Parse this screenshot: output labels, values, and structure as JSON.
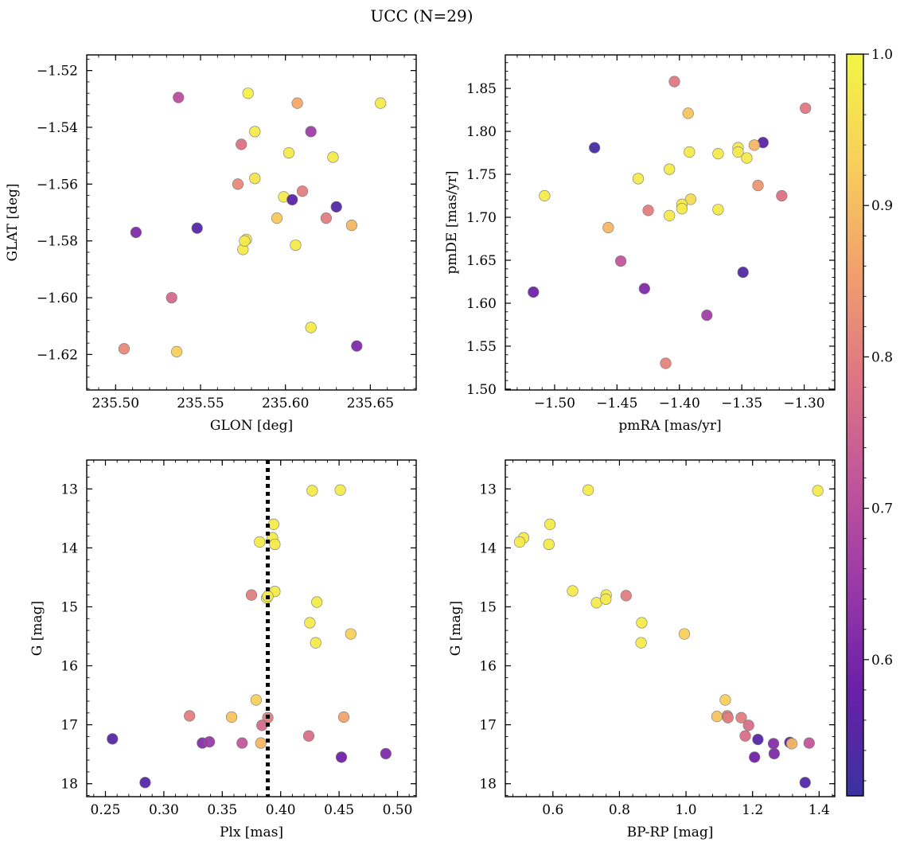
{
  "figure": {
    "title": "UCC (N=29)"
  },
  "colormap": {
    "name": "plasma",
    "range": [
      0.51,
      1.0
    ],
    "ticks": [
      0.6,
      0.7,
      0.8,
      0.9,
      1.0
    ],
    "tick_labels": [
      "0.6",
      "0.7",
      "0.8",
      "0.9",
      "1.0"
    ],
    "stops": [
      "#3a32a0",
      "#6a1fa8",
      "#9a3aa8",
      "#c2569a",
      "#df7782",
      "#f2a26c",
      "#f8d05a",
      "#f2f545"
    ]
  },
  "chart_data": [
    {
      "type": "scatter",
      "id": "glon-glat",
      "xlabel": "GLON [deg]",
      "ylabel": "GLAT [deg]",
      "xlim": [
        235.483,
        235.677
      ],
      "ylim": [
        -1.6325,
        -1.5145
      ],
      "xticks": [
        235.5,
        235.55,
        235.6,
        235.65
      ],
      "xtick_labels": [
        "235.50",
        "235.55",
        "235.60",
        "235.65"
      ],
      "yticks": [
        -1.62,
        -1.6,
        -1.58,
        -1.56,
        -1.54,
        -1.52
      ],
      "ytick_labels": [
        "−1.62",
        "−1.60",
        "−1.58",
        "−1.56",
        "−1.54",
        "−1.52"
      ],
      "points": [
        [
          235.537,
          -1.5295,
          0.7
        ],
        [
          235.578,
          -1.528,
          0.99
        ],
        [
          235.607,
          -1.5315,
          0.87
        ],
        [
          235.656,
          -1.5315,
          0.98
        ],
        [
          235.582,
          -1.5415,
          0.98
        ],
        [
          235.615,
          -1.5415,
          0.66
        ],
        [
          235.574,
          -1.546,
          0.78
        ],
        [
          235.602,
          -1.549,
          0.98
        ],
        [
          235.628,
          -1.5505,
          0.98
        ],
        [
          235.582,
          -1.558,
          0.97
        ],
        [
          235.572,
          -1.56,
          0.82
        ],
        [
          235.61,
          -1.5625,
          0.8
        ],
        [
          235.599,
          -1.5645,
          0.98
        ],
        [
          235.604,
          -1.5655,
          0.56
        ],
        [
          235.63,
          -1.568,
          0.55
        ],
        [
          235.595,
          -1.572,
          0.92
        ],
        [
          235.624,
          -1.572,
          0.8
        ],
        [
          235.639,
          -1.5745,
          0.89
        ],
        [
          235.512,
          -1.577,
          0.61
        ],
        [
          235.548,
          -1.5755,
          0.55
        ],
        [
          235.577,
          -1.5795,
          0.98
        ],
        [
          235.575,
          -1.583,
          0.98
        ],
        [
          235.606,
          -1.5815,
          0.98
        ],
        [
          235.533,
          -1.6,
          0.76
        ],
        [
          235.615,
          -1.6105,
          0.98
        ],
        [
          235.505,
          -1.618,
          0.82
        ],
        [
          235.536,
          -1.619,
          0.93
        ],
        [
          235.642,
          -1.617,
          0.61
        ],
        [
          235.576,
          -1.58,
          0.98
        ]
      ]
    },
    {
      "type": "scatter",
      "id": "pmra-pmde",
      "xlabel": "pmRA [mas/yr]",
      "ylabel": "pmDE [mas/yr]",
      "xlim": [
        -1.5395,
        -1.2755
      ],
      "ylim": [
        1.499,
        1.889
      ],
      "xticks": [
        -1.5,
        -1.45,
        -1.4,
        -1.35,
        -1.3
      ],
      "xtick_labels": [
        "−1.50",
        "−1.45",
        "−1.40",
        "−1.35",
        "−1.30"
      ],
      "yticks": [
        1.5,
        1.55,
        1.6,
        1.65,
        1.7,
        1.75,
        1.8,
        1.85
      ],
      "ytick_labels": [
        "1.50",
        "1.55",
        "1.60",
        "1.65",
        "1.70",
        "1.75",
        "1.80",
        "1.85"
      ],
      "points": [
        [
          -1.404,
          1.858,
          0.79
        ],
        [
          -1.299,
          1.827,
          0.79
        ],
        [
          -1.393,
          1.821,
          0.91
        ],
        [
          -1.468,
          1.781,
          0.53
        ],
        [
          -1.333,
          1.787,
          0.56
        ],
        [
          -1.34,
          1.784,
          0.89
        ],
        [
          -1.353,
          1.781,
          0.98
        ],
        [
          -1.353,
          1.776,
          0.98
        ],
        [
          -1.392,
          1.776,
          0.98
        ],
        [
          -1.369,
          1.774,
          0.98
        ],
        [
          -1.346,
          1.769,
          0.98
        ],
        [
          -1.408,
          1.756,
          0.98
        ],
        [
          -1.433,
          1.745,
          0.98
        ],
        [
          -1.337,
          1.737,
          0.84
        ],
        [
          -1.318,
          1.725,
          0.78
        ],
        [
          -1.508,
          1.725,
          0.98
        ],
        [
          -1.391,
          1.721,
          0.95
        ],
        [
          -1.398,
          1.715,
          0.98
        ],
        [
          -1.398,
          1.71,
          0.98
        ],
        [
          -1.425,
          1.708,
          0.8
        ],
        [
          -1.369,
          1.709,
          0.98
        ],
        [
          -1.408,
          1.702,
          0.98
        ],
        [
          -1.457,
          1.688,
          0.89
        ],
        [
          -1.447,
          1.649,
          0.72
        ],
        [
          -1.349,
          1.636,
          0.54
        ],
        [
          -1.428,
          1.617,
          0.61
        ],
        [
          -1.517,
          1.613,
          0.59
        ],
        [
          -1.378,
          1.586,
          0.66
        ],
        [
          -1.411,
          1.53,
          0.81
        ]
      ]
    },
    {
      "type": "scatter",
      "id": "plx-g",
      "xlabel": "Plx [mas]",
      "ylabel": "G [mag]",
      "xlim": [
        0.234,
        0.516
      ],
      "ylim": [
        18.22,
        12.51
      ],
      "xticks": [
        0.25,
        0.3,
        0.35,
        0.4,
        0.45,
        0.5
      ],
      "xtick_labels": [
        "0.25",
        "0.30",
        "0.35",
        "0.40",
        "0.45",
        "0.50"
      ],
      "yticks": [
        13,
        14,
        15,
        16,
        17,
        18
      ],
      "ytick_labels": [
        "13",
        "14",
        "15",
        "16",
        "17",
        "18"
      ],
      "vline": {
        "x": 0.389
      },
      "points": [
        [
          0.427,
          13.03,
          0.98
        ],
        [
          0.451,
          13.02,
          0.98
        ],
        [
          0.394,
          13.6,
          0.98
        ],
        [
          0.393,
          13.83,
          0.98
        ],
        [
          0.382,
          13.9,
          0.98
        ],
        [
          0.395,
          13.94,
          0.98
        ],
        [
          0.375,
          14.8,
          0.8
        ],
        [
          0.395,
          14.74,
          0.98
        ],
        [
          0.388,
          14.85,
          0.98
        ],
        [
          0.389,
          14.82,
          0.98
        ],
        [
          0.431,
          14.92,
          0.98
        ],
        [
          0.425,
          15.27,
          0.98
        ],
        [
          0.43,
          15.61,
          0.98
        ],
        [
          0.46,
          15.46,
          0.93
        ],
        [
          0.379,
          16.58,
          0.93
        ],
        [
          0.322,
          16.85,
          0.8
        ],
        [
          0.358,
          16.87,
          0.91
        ],
        [
          0.389,
          16.88,
          0.8
        ],
        [
          0.454,
          16.87,
          0.86
        ],
        [
          0.384,
          17.01,
          0.76
        ],
        [
          0.424,
          17.19,
          0.77
        ],
        [
          0.256,
          17.24,
          0.55
        ],
        [
          0.333,
          17.31,
          0.62
        ],
        [
          0.339,
          17.29,
          0.65
        ],
        [
          0.367,
          17.31,
          0.72
        ],
        [
          0.383,
          17.31,
          0.89
        ],
        [
          0.452,
          17.55,
          0.59
        ],
        [
          0.49,
          17.49,
          0.61
        ],
        [
          0.284,
          17.98,
          0.55
        ]
      ]
    },
    {
      "type": "scatter",
      "id": "bprp-g",
      "xlabel": "BP-RP [mag]",
      "ylabel": "G [mag]",
      "xlim": [
        0.457,
        1.447
      ],
      "ylim": [
        18.22,
        12.51
      ],
      "xticks": [
        0.6,
        0.8,
        1.0,
        1.2,
        1.4
      ],
      "xtick_labels": [
        "0.6",
        "0.8",
        "1.0",
        "1.2",
        "1.4"
      ],
      "yticks": [
        13,
        14,
        15,
        16,
        17,
        18
      ],
      "ytick_labels": [
        "13",
        "14",
        "15",
        "16",
        "17",
        "18"
      ],
      "points": [
        [
          0.706,
          13.02,
          0.98
        ],
        [
          1.396,
          13.03,
          0.98
        ],
        [
          0.591,
          13.6,
          0.98
        ],
        [
          0.512,
          13.83,
          0.98
        ],
        [
          0.5,
          13.9,
          0.98
        ],
        [
          0.588,
          13.94,
          0.98
        ],
        [
          0.659,
          14.73,
          0.98
        ],
        [
          0.76,
          14.8,
          0.98
        ],
        [
          0.731,
          14.93,
          0.98
        ],
        [
          0.759,
          14.87,
          0.98
        ],
        [
          0.82,
          14.81,
          0.8
        ],
        [
          0.867,
          15.27,
          0.98
        ],
        [
          0.865,
          15.61,
          0.98
        ],
        [
          0.995,
          15.46,
          0.93
        ],
        [
          1.118,
          16.58,
          0.93
        ],
        [
          1.093,
          16.86,
          0.91
        ],
        [
          1.124,
          16.85,
          0.8
        ],
        [
          1.126,
          16.88,
          0.8
        ],
        [
          1.166,
          16.88,
          0.8
        ],
        [
          1.188,
          17.01,
          0.77
        ],
        [
          1.178,
          17.19,
          0.77
        ],
        [
          1.216,
          17.25,
          0.55
        ],
        [
          1.263,
          17.32,
          0.62
        ],
        [
          1.312,
          17.3,
          0.56
        ],
        [
          1.318,
          17.32,
          0.89
        ],
        [
          1.37,
          17.31,
          0.72
        ],
        [
          1.206,
          17.55,
          0.59
        ],
        [
          1.265,
          17.49,
          0.61
        ],
        [
          1.358,
          17.98,
          0.55
        ]
      ]
    }
  ]
}
